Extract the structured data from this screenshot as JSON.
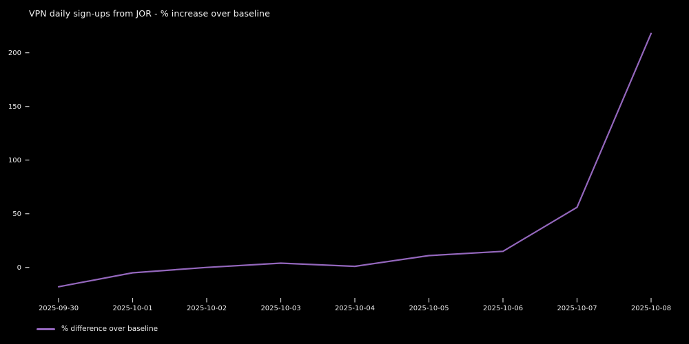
{
  "window": {
    "background": "#000000",
    "text_color": "#eaeaea",
    "tick_color": "#d0d0d0"
  },
  "chart_data": {
    "type": "line",
    "title": "VPN daily sign-ups from JOR - % increase over baseline",
    "xlabel": "",
    "ylabel": "",
    "x": [
      "2025-09-30",
      "2025-10-01",
      "2025-10-02",
      "2025-10-03",
      "2025-10-04",
      "2025-10-05",
      "2025-10-06",
      "2025-10-07",
      "2025-10-08"
    ],
    "series": [
      {
        "name": "% difference over baseline",
        "color": "#9467bd",
        "values": [
          -18,
          -5,
          0,
          4,
          1,
          11,
          15,
          56,
          218
        ]
      }
    ],
    "yticks": [
      0,
      50,
      100,
      150,
      200
    ],
    "ylim": [
      -25,
      225
    ],
    "grid": false,
    "legend_position": "lower-left-below-axis",
    "background": "#000000"
  }
}
